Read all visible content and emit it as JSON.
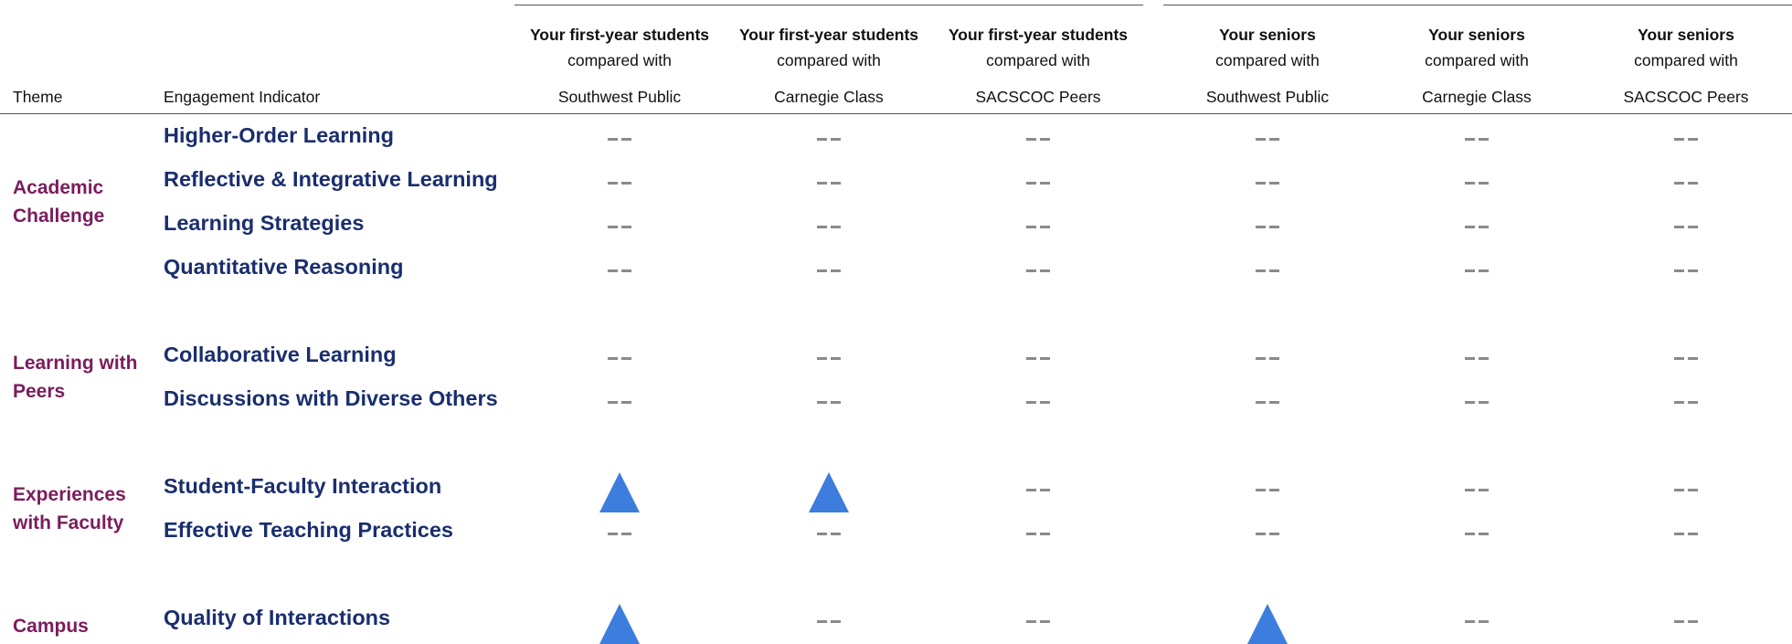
{
  "header": {
    "theme_label": "Theme",
    "indicator_label": "Engagement Indicator",
    "columns": [
      {
        "group": "Your first-year students",
        "compared": "compared with",
        "peer": "Southwest Public"
      },
      {
        "group": "Your first-year students",
        "compared": "compared with",
        "peer": "Carnegie Class"
      },
      {
        "group": "Your first-year students",
        "compared": "compared with",
        "peer": "SACSCOC Peers"
      },
      {
        "group": "Your seniors",
        "compared": "compared with",
        "peer": "Southwest Public"
      },
      {
        "group": "Your seniors",
        "compared": "compared with",
        "peer": "Carnegie Class"
      },
      {
        "group": "Your seniors",
        "compared": "compared with",
        "peer": "SACSCOC Peers"
      }
    ]
  },
  "themes": [
    {
      "name": "Academic Challenge",
      "lines": [
        "Academic",
        "Challenge"
      ]
    },
    {
      "name": "Learning with Peers",
      "lines": [
        "Learning with",
        "Peers"
      ]
    },
    {
      "name": "Experiences with Faculty",
      "lines": [
        "Experiences",
        "with Faculty"
      ]
    },
    {
      "name": "Campus",
      "lines": [
        "Campus"
      ]
    }
  ],
  "indicators": [
    {
      "name": "Higher-Order Learning",
      "theme": 0,
      "marks": [
        "none",
        "none",
        "none",
        "none",
        "none",
        "none"
      ]
    },
    {
      "name": "Reflective & Integrative Learning",
      "theme": 0,
      "marks": [
        "none",
        "none",
        "none",
        "none",
        "none",
        "none"
      ]
    },
    {
      "name": "Learning Strategies",
      "theme": 0,
      "marks": [
        "none",
        "none",
        "none",
        "none",
        "none",
        "none"
      ]
    },
    {
      "name": "Quantitative Reasoning",
      "theme": 0,
      "marks": [
        "none",
        "none",
        "none",
        "none",
        "none",
        "none"
      ]
    },
    {
      "name": "Collaborative Learning",
      "theme": 1,
      "marks": [
        "none",
        "none",
        "none",
        "none",
        "none",
        "none"
      ]
    },
    {
      "name": "Discussions with Diverse Others",
      "theme": 1,
      "marks": [
        "none",
        "none",
        "none",
        "none",
        "none",
        "none"
      ]
    },
    {
      "name": "Student-Faculty Interaction",
      "theme": 2,
      "marks": [
        "up",
        "up",
        "none",
        "none",
        "none",
        "none"
      ]
    },
    {
      "name": "Effective Teaching Practices",
      "theme": 2,
      "marks": [
        "none",
        "none",
        "none",
        "none",
        "none",
        "none"
      ]
    },
    {
      "name": "Quality of Interactions",
      "theme": 3,
      "marks": [
        "up",
        "none",
        "none",
        "up",
        "none",
        "none"
      ]
    }
  ],
  "legend_marks": {
    "up": "triangle-up-icon",
    "none": "no-difference-dash-icon"
  },
  "colors": {
    "theme_text": "#7a1c5c",
    "indicator_text": "#1a2e6e",
    "triangle": "#3c7dde",
    "dash": "#8a8a8a"
  }
}
